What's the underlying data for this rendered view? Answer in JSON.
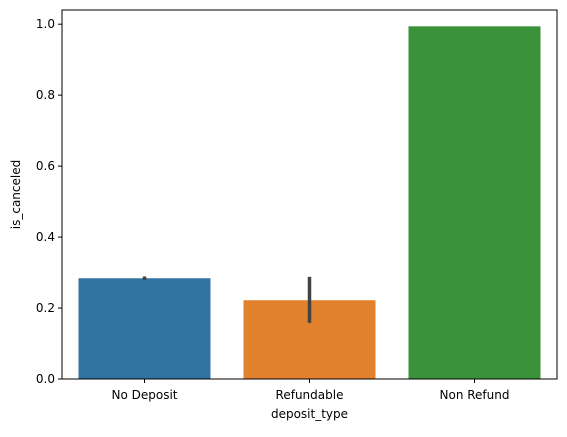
{
  "chart_data": {
    "type": "bar",
    "title": "",
    "xlabel": "deposit_type",
    "ylabel": "is_canceled",
    "categories": [
      "No Deposit",
      "Refundable",
      "Non Refund"
    ],
    "values": [
      0.284,
      0.222,
      0.994
    ],
    "error_bars": [
      {
        "low": 0.279,
        "high": 0.289
      },
      {
        "low": 0.158,
        "high": 0.288
      },
      null
    ],
    "colors": [
      "#3274a1",
      "#e1812c",
      "#3a923a"
    ],
    "error_color": "#424242",
    "ylim": [
      0.0,
      1.04
    ],
    "yticks": [
      0.0,
      0.2,
      0.4,
      0.6,
      0.8,
      1.0
    ],
    "ytick_labels": [
      "0.0",
      "0.2",
      "0.4",
      "0.6",
      "0.8",
      "1.0"
    ],
    "grid": false,
    "legend": "none"
  }
}
